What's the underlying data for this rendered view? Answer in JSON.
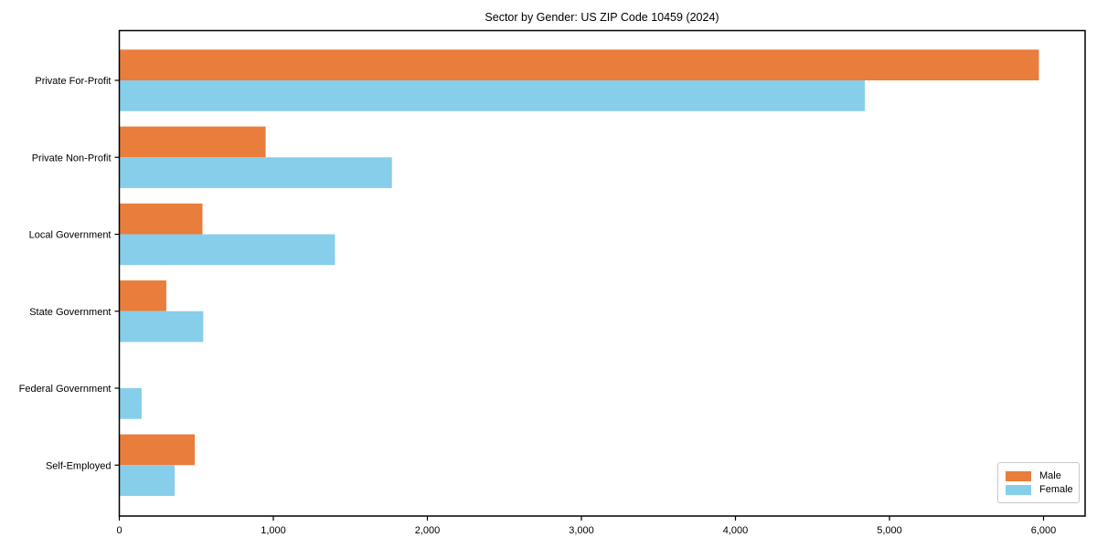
{
  "chart_data": {
    "type": "bar",
    "orientation": "horizontal",
    "title": "Sector by Gender: US ZIP Code 10459 (2024)",
    "categories": [
      "Private For-Profit",
      "Private Non-Profit",
      "Local Government",
      "State Government",
      "Federal Government",
      "Self-Employed"
    ],
    "series": [
      {
        "name": "Male",
        "color": "#e87d3c",
        "values": [
          5970,
          950,
          540,
          305,
          0,
          490
        ]
      },
      {
        "name": "Female",
        "color": "#87ceeb",
        "values": [
          4840,
          1770,
          1400,
          545,
          145,
          360
        ]
      }
    ],
    "xlabel": "",
    "ylabel": "",
    "xlim": [
      0,
      6270
    ],
    "xticks": [
      0,
      1000,
      2000,
      3000,
      4000,
      5000,
      6000
    ],
    "xtick_labels": [
      "0",
      "1,000",
      "2,000",
      "3,000",
      "4,000",
      "5,000",
      "6,000"
    ],
    "legend_position": "lower right",
    "grid": false,
    "axis_color": "#000000",
    "background_color": "#ffffff"
  }
}
